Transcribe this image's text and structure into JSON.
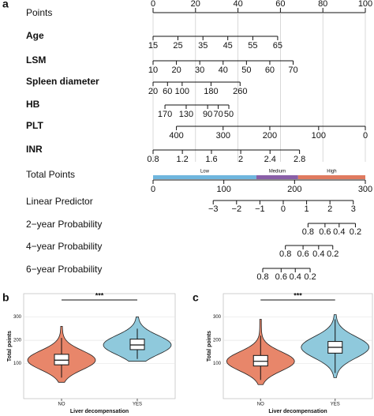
{
  "panel_labels": [
    "a",
    "b",
    "c"
  ],
  "chart_data": [
    {
      "type": "nomogram",
      "points_axis": {
        "label": "Points",
        "xlim": [
          0,
          100
        ],
        "ticks": [
          0,
          20,
          40,
          60,
          80,
          100
        ]
      },
      "variables": [
        {
          "label": "Age",
          "ticks": [
            15,
            25,
            35,
            45,
            55,
            65
          ],
          "points": [
            0,
            11.7,
            23.5,
            35.2,
            47,
            58.7
          ]
        },
        {
          "label": "LSM",
          "ticks": [
            10,
            20,
            30,
            40,
            50,
            60,
            70
          ],
          "points": [
            0,
            11,
            22,
            33,
            44,
            55,
            66
          ]
        },
        {
          "label": "Spleen diameter",
          "ticks": [
            20,
            60,
            100,
            180,
            260
          ],
          "points": [
            0,
            6.8,
            13.7,
            27.3,
            41
          ]
        },
        {
          "label": "HB",
          "ticks": [
            170,
            130,
            90,
            70,
            50
          ],
          "points": [
            5.6,
            15.6,
            25.7,
            30.7,
            35.7
          ]
        },
        {
          "label": "PLT",
          "ticks": [
            400,
            300,
            200,
            100,
            0
          ],
          "points": [
            11,
            33,
            55,
            78,
            100
          ]
        },
        {
          "label": "INR",
          "ticks": [
            0.8,
            1.2,
            1.6,
            2,
            2.4,
            2.8
          ],
          "points": [
            0,
            13.8,
            27.5,
            41.3,
            55.1,
            69
          ]
        }
      ],
      "total_axis": {
        "label": "Total Points",
        "xlim": [
          0,
          300
        ],
        "ticks": [
          0,
          100,
          200,
          300
        ],
        "risk_groups": [
          {
            "name": "Low",
            "color": "#6fb6de",
            "range": [
              0,
              146
            ]
          },
          {
            "name": "Medium",
            "color": "#8a5fa8",
            "range": [
              146,
              205
            ]
          },
          {
            "name": "High",
            "color": "#e07a5f",
            "range": [
              205,
              300
            ]
          }
        ]
      },
      "outcome_scales": [
        {
          "label": "Linear Predictor",
          "ticks": [
            {
              "value": -3,
              "label": "−3"
            },
            {
              "value": -2,
              "label": "−2"
            },
            {
              "value": -1,
              "label": "−1"
            },
            0,
            1,
            2,
            3
          ],
          "total_points": [
            85,
            118,
            151,
            184,
            217,
            250,
            283
          ]
        },
        {
          "label": "2−year Probability",
          "ticks": [
            0.8,
            0.6,
            0.4,
            0.2
          ],
          "total_points": [
            219,
            243,
            263,
            286
          ]
        },
        {
          "label": "4−year Probability",
          "ticks": [
            0.8,
            0.6,
            0.4,
            0.2
          ],
          "total_points": [
            187,
            212,
            234,
            254
          ]
        },
        {
          "label": "6−year Probability",
          "ticks": [
            0.8,
            0.6,
            0.4,
            0.2
          ],
          "total_points": [
            155,
            181,
            201,
            222
          ]
        }
      ]
    },
    {
      "type": "violin",
      "y_label": "Total points",
      "x_label": "Liver decompensation",
      "significance": "***",
      "categories": [
        "NO",
        "YES"
      ],
      "colors": [
        "#e8866a",
        "#8fc9dc"
      ],
      "ylim": [
        -50,
        400
      ],
      "yticks": [
        100,
        200,
        300
      ],
      "grid": true,
      "boxes": [
        [
          40,
          95,
          115,
          140,
          210
        ],
        [
          120,
          160,
          180,
          205,
          250
        ]
      ],
      "violin_range": [
        [
          20,
          260
        ],
        [
          110,
          300
        ]
      ]
    },
    {
      "type": "violin",
      "y_label": "Total points",
      "x_label": "Liver decompensation",
      "significance": "***",
      "categories": [
        "NO",
        "YES"
      ],
      "colors": [
        "#e8866a",
        "#8fc9dc"
      ],
      "ylim": [
        -50,
        400
      ],
      "yticks": [
        100,
        200,
        300
      ],
      "grid": true,
      "boxes": [
        [
          30,
          90,
          110,
          135,
          220
        ],
        [
          60,
          145,
          170,
          195,
          290
        ]
      ],
      "violin_range": [
        [
          10,
          290
        ],
        [
          40,
          310
        ]
      ]
    }
  ]
}
